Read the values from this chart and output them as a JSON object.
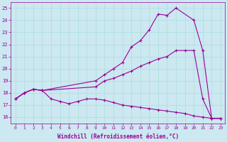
{
  "xlabel": "Windchill (Refroidissement éolien,°C)",
  "bg_color": "#cce8f0",
  "line_color": "#990099",
  "grid_color": "#aadddd",
  "xlim": [
    -0.5,
    23.5
  ],
  "ylim": [
    15.5,
    25.5
  ],
  "yticks": [
    16,
    17,
    18,
    19,
    20,
    21,
    22,
    23,
    24,
    25
  ],
  "xticks": [
    0,
    1,
    2,
    3,
    4,
    5,
    6,
    7,
    8,
    9,
    10,
    11,
    12,
    13,
    14,
    15,
    16,
    17,
    18,
    19,
    20,
    21,
    22,
    23
  ],
  "line1_x": [
    0,
    1,
    2,
    3,
    9,
    10,
    11,
    12,
    13,
    14,
    15,
    16,
    17,
    18,
    20,
    21,
    22,
    23
  ],
  "line1_y": [
    17.5,
    18.0,
    18.3,
    18.2,
    19.0,
    19.5,
    20.0,
    20.5,
    21.8,
    22.3,
    23.2,
    24.5,
    24.4,
    25.0,
    24.0,
    21.5,
    15.9,
    15.9
  ],
  "line2_x": [
    0,
    1,
    2,
    3,
    9,
    10,
    11,
    12,
    13,
    14,
    15,
    16,
    17,
    18,
    19,
    20,
    21,
    22,
    23
  ],
  "line2_y": [
    17.5,
    18.0,
    18.3,
    18.2,
    18.5,
    19.0,
    19.2,
    19.5,
    19.8,
    20.2,
    20.5,
    20.8,
    21.0,
    21.5,
    21.5,
    21.5,
    17.5,
    15.9,
    15.9
  ],
  "line3_x": [
    0,
    1,
    2,
    3,
    4,
    5,
    6,
    7,
    8,
    9,
    10,
    11,
    12,
    13,
    14,
    15,
    16,
    17,
    18,
    19,
    20,
    21,
    22,
    23
  ],
  "line3_y": [
    17.5,
    18.0,
    18.3,
    18.2,
    17.5,
    17.3,
    17.1,
    17.3,
    17.5,
    17.5,
    17.4,
    17.2,
    17.0,
    16.9,
    16.8,
    16.7,
    16.6,
    16.5,
    16.4,
    16.3,
    16.1,
    16.0,
    15.9,
    15.9
  ]
}
